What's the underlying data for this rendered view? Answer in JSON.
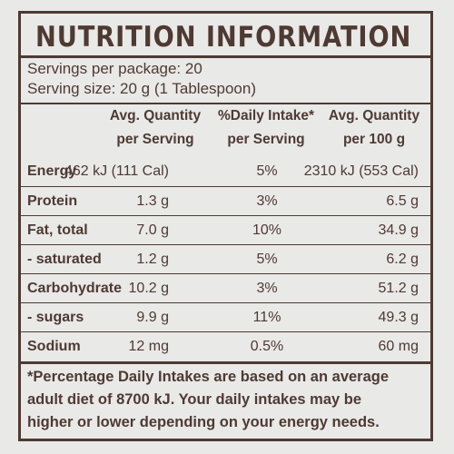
{
  "title": "NUTRITION INFORMATION",
  "servings_per_package": "Servings per package: 20",
  "serving_size": "Serving size: 20 g (1 Tablespoon)",
  "columns": [
    {
      "line1": "Avg. Quantity",
      "line2": "per Serving"
    },
    {
      "line1": "%Daily Intake*",
      "line2": "per Serving"
    },
    {
      "line1": "Avg. Quantity",
      "line2": "per 100 g"
    }
  ],
  "rows": [
    {
      "name": "Energy",
      "per_serving": "462 kJ (111 Cal)",
      "daily_intake": "5%",
      "per_100g": "2310 kJ (553 Cal)"
    },
    {
      "name": "Protein",
      "per_serving": "1.3 g",
      "daily_intake": "3%",
      "per_100g": "6.5 g"
    },
    {
      "name": "Fat, total",
      "per_serving": "7.0 g",
      "daily_intake": "10%",
      "per_100g": "34.9 g"
    },
    {
      "name": "- saturated",
      "per_serving": "1.2 g",
      "daily_intake": "5%",
      "per_100g": "6.2 g"
    },
    {
      "name": "Carbohydrate",
      "per_serving": "10.2 g",
      "daily_intake": "3%",
      "per_100g": "51.2 g"
    },
    {
      "name": "- sugars",
      "per_serving": "9.9 g",
      "daily_intake": "11%",
      "per_100g": "49.3 g"
    },
    {
      "name": "Sodium",
      "per_serving": "12 mg",
      "daily_intake": "0.5%",
      "per_100g": "60 mg"
    }
  ],
  "footnote_lines": [
    "*Percentage Daily Intakes are based on an average",
    "adult diet of 8700 kJ. Your daily intakes may be",
    "higher or lower depending on your energy needs."
  ]
}
